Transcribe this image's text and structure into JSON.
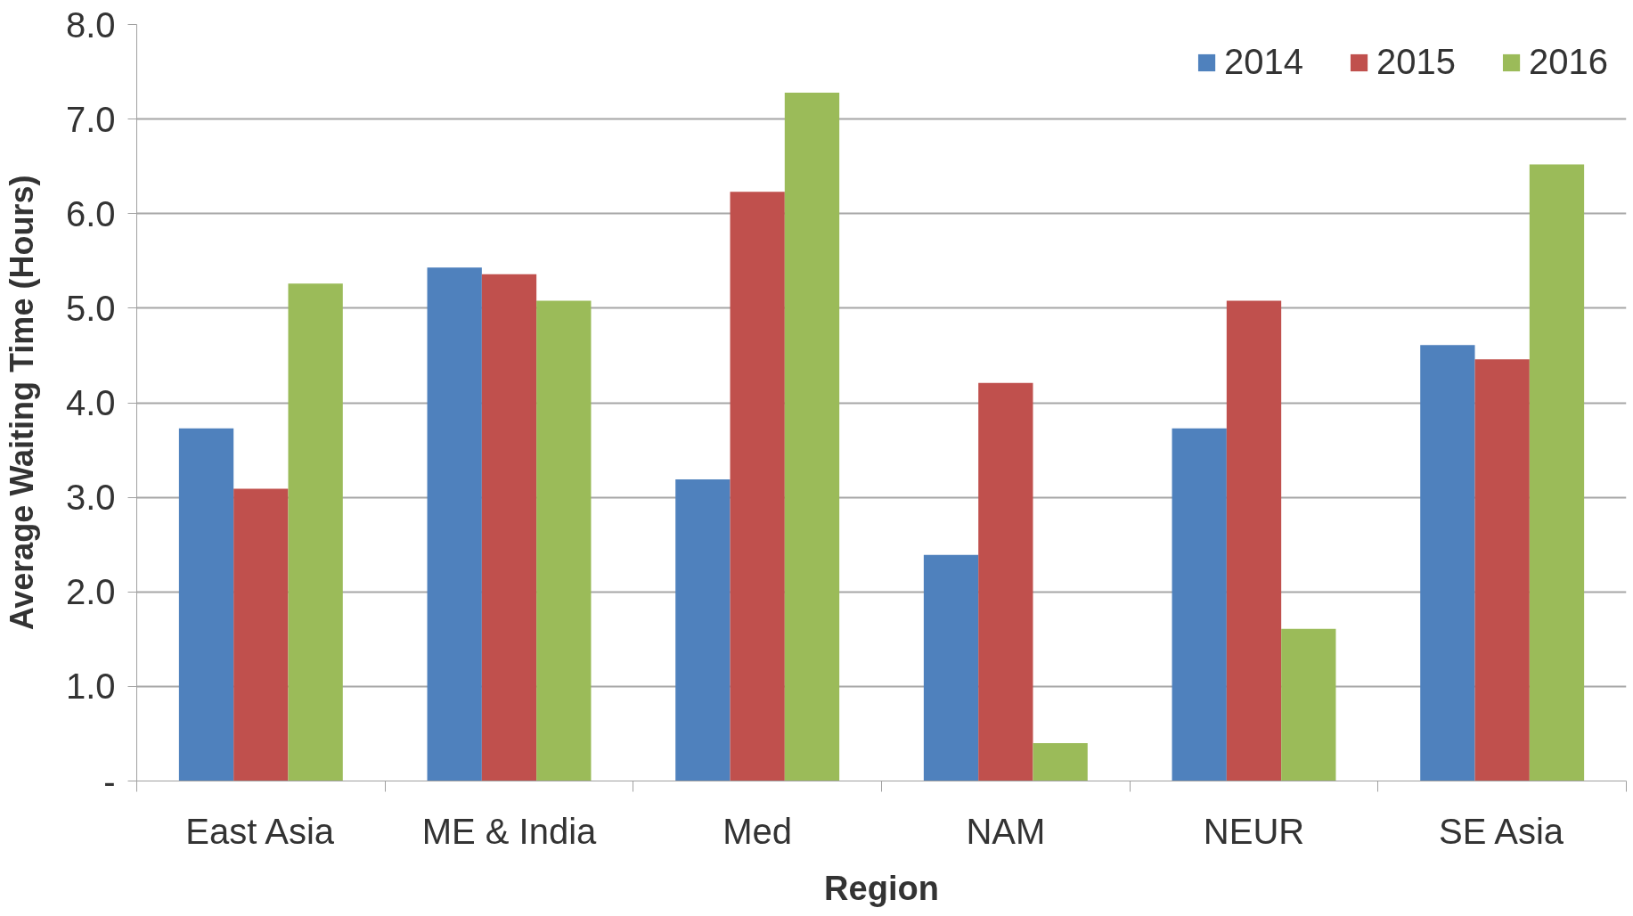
{
  "chart_data": {
    "type": "bar",
    "xlabel": "Region",
    "ylabel": "Average Waiting Time (Hours)",
    "categories": [
      "East Asia",
      "ME & India",
      "Med",
      "NAM",
      "NEUR",
      "SE Asia"
    ],
    "series": [
      {
        "name": "2014",
        "color": "#4f81bd",
        "values": [
          3.73,
          5.43,
          3.19,
          2.39,
          3.73,
          4.61
        ]
      },
      {
        "name": "2015",
        "color": "#c0504d",
        "values": [
          3.09,
          5.36,
          6.23,
          4.21,
          5.08,
          4.46
        ]
      },
      {
        "name": "2016",
        "color": "#9bbb59",
        "values": [
          5.26,
          5.08,
          7.28,
          0.4,
          1.61,
          6.52
        ]
      }
    ],
    "ylim": [
      0,
      8
    ],
    "yticks": [
      {
        "value": 0,
        "label": "-"
      },
      {
        "value": 1,
        "label": "1.0"
      },
      {
        "value": 2,
        "label": "2.0"
      },
      {
        "value": 3,
        "label": "3.0"
      },
      {
        "value": 4,
        "label": "4.0"
      },
      {
        "value": 5,
        "label": "5.0"
      },
      {
        "value": 6,
        "label": "6.0"
      },
      {
        "value": 7,
        "label": "7.0"
      },
      {
        "value": 8,
        "label": "8.0"
      }
    ],
    "grid": "y",
    "legend": "top right"
  }
}
